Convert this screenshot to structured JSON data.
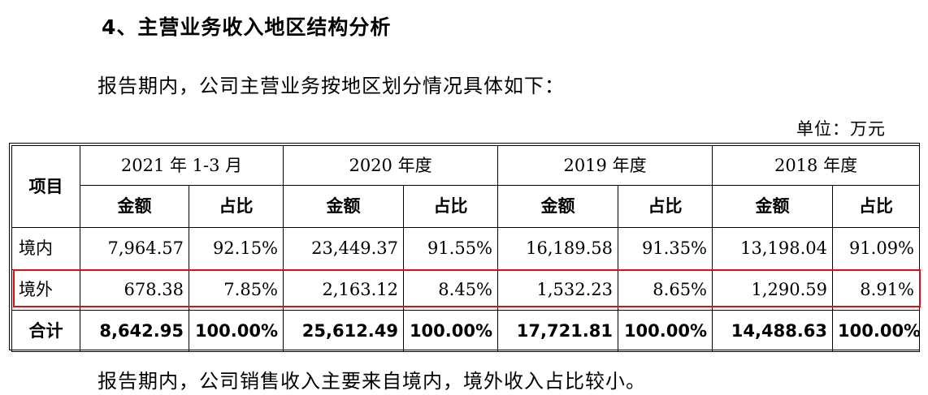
{
  "section_title": "4、主营业务收入地区结构分析",
  "intro": "报告期内，公司主营业务按地区划分情况具体如下：",
  "unit": "单位：万元",
  "table": {
    "item_header": "项目",
    "periods": [
      "2021 年 1-3 月",
      "2020 年度",
      "2019 年度",
      "2018 年度"
    ],
    "sub_headers": {
      "amount": "金额",
      "ratio": "占比"
    },
    "rows": [
      {
        "label": "境内",
        "cells": [
          "7,964.57",
          "92.15%",
          "23,449.37",
          "91.55%",
          "16,189.58",
          "91.35%",
          "13,198.04",
          "91.09%"
        ]
      },
      {
        "label": "境外",
        "cells": [
          "678.38",
          "7.85%",
          "2,163.12",
          "8.45%",
          "1,532.23",
          "8.65%",
          "1,290.59",
          "8.91%"
        ]
      },
      {
        "label": "合计",
        "cells": [
          "8,642.95",
          "100.00%",
          "25,612.49",
          "100.00%",
          "17,721.81",
          "100.00%",
          "14,488.63",
          "100.00%"
        ]
      }
    ]
  },
  "highlight_color": "#e10c12",
  "conclusion": "报告期内，公司销售收入主要来自境内，境外收入占比较小。"
}
